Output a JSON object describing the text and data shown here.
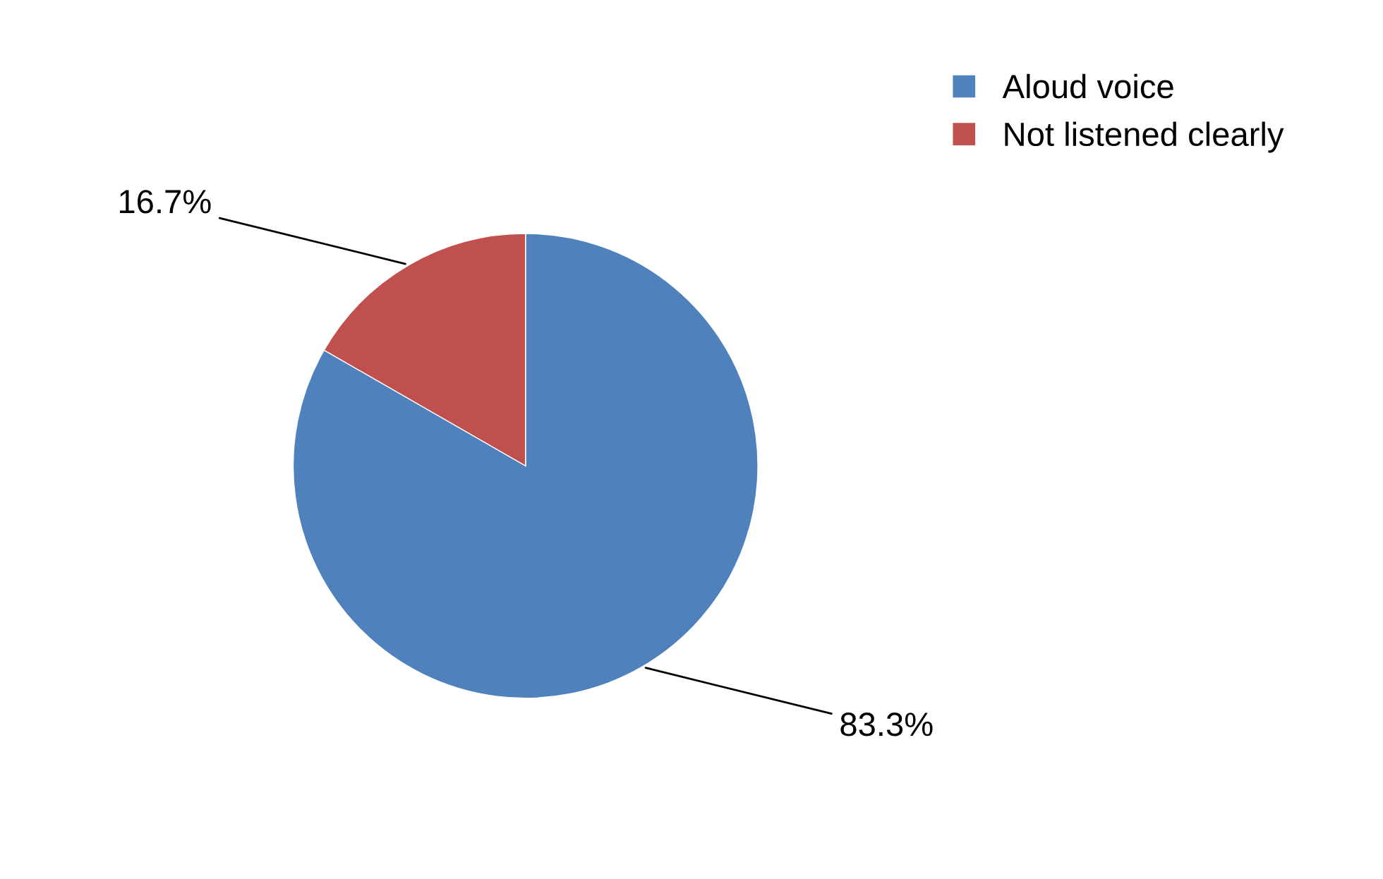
{
  "chart_data": {
    "type": "pie",
    "categories": [
      "Aloud voice",
      "Not listened clearly"
    ],
    "values": [
      83.3,
      16.7
    ],
    "colors": [
      "#4f81bd",
      "#c0504d"
    ],
    "value_labels": [
      "83.3%",
      "16.7%"
    ],
    "legend": "top right"
  }
}
